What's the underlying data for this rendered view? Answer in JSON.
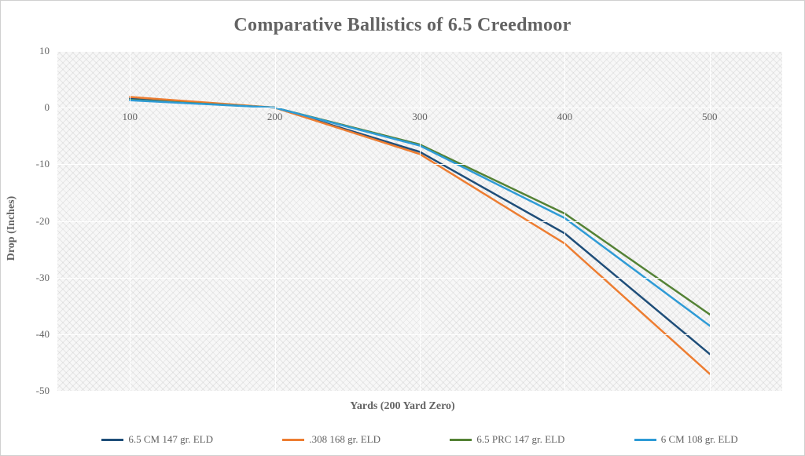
{
  "chart": {
    "type": "line",
    "title": "Comparative Ballistics of 6.5 Creedmoor",
    "title_fontsize": 24,
    "title_color": "#636363",
    "background_color": "#ffffff",
    "plot_background": "#f7f7f7",
    "plot_pattern": "diagonal-crosshatch",
    "grid_color": "#ffffff",
    "font_family": "Georgia",
    "x_axis": {
      "title": "Yards (200 Yard Zero)",
      "title_fontsize": 14,
      "categories": [
        "100",
        "200",
        "300",
        "400",
        "500"
      ],
      "label_fontsize": 13,
      "label_color": "#636363",
      "grid": true
    },
    "y_axis": {
      "title": "Drop (Inches)",
      "title_fontsize": 14,
      "min": -50,
      "max": 10,
      "tick_step": 10,
      "ticks": [
        10,
        0,
        -10,
        -20,
        -30,
        -40,
        -50
      ],
      "label_fontsize": 13,
      "label_color": "#636363",
      "grid": true,
      "zero_line": true,
      "category_labels_at_zero": true
    },
    "series": [
      {
        "name": "6.5 CM 147 gr. ELD",
        "color": "#1f4e79",
        "line_width": 2.5,
        "values": [
          1.6,
          0,
          -7.8,
          -22.2,
          -43.5
        ]
      },
      {
        "name": ".308 168 gr. ELD",
        "color": "#ed7d31",
        "line_width": 2.5,
        "values": [
          1.9,
          0,
          -8.2,
          -24.0,
          -47.0
        ]
      },
      {
        "name": "6.5 PRC 147 gr. ELD",
        "color": "#548235",
        "line_width": 2.5,
        "values": [
          1.4,
          0,
          -6.5,
          -18.7,
          -36.5
        ]
      },
      {
        "name": "6 CM 108 gr. ELD",
        "color": "#2e9bd6",
        "line_width": 2.5,
        "values": [
          1.3,
          0,
          -6.7,
          -19.5,
          -38.5
        ]
      }
    ],
    "legend": {
      "position": "bottom",
      "swatch_width": 28,
      "fontsize": 13
    }
  }
}
